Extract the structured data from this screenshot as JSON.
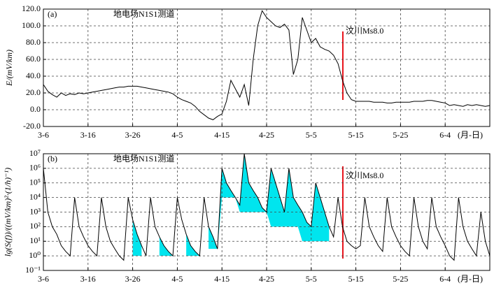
{
  "chart_data": [
    {
      "type": "line",
      "panel": "(a)",
      "annotation": "地电场N1S1测道",
      "event_label": "汶川Ms8.0",
      "y_label": "E/(mV/km)",
      "x_label": "(月-日)",
      "grid": true,
      "categories": [
        "3-6",
        null,
        null,
        null,
        null,
        null,
        null,
        null,
        null,
        null,
        "3-16",
        null,
        null,
        null,
        null,
        null,
        null,
        null,
        null,
        null,
        "3-26",
        null,
        null,
        null,
        null,
        null,
        null,
        null,
        null,
        null,
        "4-5",
        null,
        null,
        null,
        null,
        null,
        null,
        null,
        null,
        null,
        "4-15",
        null,
        null,
        null,
        null,
        null,
        null,
        null,
        null,
        null,
        "4-25",
        null,
        null,
        null,
        null,
        null,
        null,
        null,
        null,
        null,
        "5-5",
        null,
        null,
        null,
        null,
        null,
        null,
        null,
        null,
        null,
        "5-15",
        null,
        null,
        null,
        null,
        null,
        null,
        null,
        null,
        null,
        "5-25",
        null,
        null,
        null,
        null,
        null,
        null,
        null,
        null,
        null,
        "6-4",
        null,
        null,
        null,
        null,
        null,
        null,
        null,
        null,
        null,
        null
      ],
      "series": [
        {
          "color": "#000000",
          "values": [
            30,
            22,
            18,
            15,
            20,
            17,
            19,
            18,
            20,
            19,
            20,
            21,
            22,
            23,
            24,
            25,
            26,
            27,
            27,
            28,
            28,
            28,
            27,
            26,
            25,
            24,
            23,
            22,
            21,
            19,
            15,
            12,
            10,
            8,
            4,
            -2,
            -6,
            -10,
            -12,
            -8,
            -5,
            10,
            35,
            25,
            15,
            30,
            5,
            60,
            100,
            118,
            110,
            105,
            100,
            98,
            102,
            95,
            42,
            60,
            110,
            95,
            80,
            85,
            75,
            72,
            70,
            65,
            55,
            35,
            20,
            12,
            10,
            10,
            10,
            10,
            9,
            9,
            9,
            8,
            8,
            9,
            9,
            9,
            9,
            10,
            10,
            10,
            11,
            11,
            10,
            9,
            8,
            5,
            6,
            5,
            4,
            6,
            5,
            6,
            5,
            4,
            5
          ]
        }
      ],
      "ylim": [
        -20,
        120
      ],
      "yticks": [
        {
          "value": -20,
          "label": "-20.0"
        },
        {
          "value": 0,
          "label": "0.0"
        },
        {
          "value": 20,
          "label": "20.0"
        },
        {
          "value": 40,
          "label": "40.0"
        },
        {
          "value": 60,
          "label": "60.0"
        },
        {
          "value": 80,
          "label": "80.0"
        },
        {
          "value": 100,
          "label": "100.0"
        },
        {
          "value": 120,
          "label": "120.0"
        }
      ]
    },
    {
      "type": "line",
      "panel": "(b)",
      "annotation": "地电场N1S1测道",
      "event_label": "汶川Ms8.0",
      "y_label": "lg(S(f))/((mV/km)²·(1/h)⁻¹)",
      "x_label": "(月-日)",
      "grid": true,
      "log_scale": true,
      "categories": [
        "3-6",
        null,
        null,
        null,
        null,
        null,
        null,
        null,
        null,
        null,
        "3-16",
        null,
        null,
        null,
        null,
        null,
        null,
        null,
        null,
        null,
        "3-26",
        null,
        null,
        null,
        null,
        null,
        null,
        null,
        null,
        null,
        "4-5",
        null,
        null,
        null,
        null,
        null,
        null,
        null,
        null,
        null,
        "4-15",
        null,
        null,
        null,
        null,
        null,
        null,
        null,
        null,
        null,
        "4-25",
        null,
        null,
        null,
        null,
        null,
        null,
        null,
        null,
        null,
        "5-5",
        null,
        null,
        null,
        null,
        null,
        null,
        null,
        null,
        null,
        "5-15",
        null,
        null,
        null,
        null,
        null,
        null,
        null,
        null,
        null,
        "5-25",
        null,
        null,
        null,
        null,
        null,
        null,
        null,
        null,
        null,
        "6-4",
        null,
        null,
        null,
        null,
        null,
        null,
        null,
        null,
        null,
        null
      ],
      "series": [
        {
          "color": "#000000",
          "values": [
            1000000,
            1000,
            100,
            30,
            5,
            2,
            1,
            10000,
            100,
            20,
            5,
            2,
            1,
            10000,
            100,
            10,
            3,
            1,
            0.5,
            10000,
            300,
            30,
            5,
            1,
            10000,
            100,
            20,
            5,
            2,
            1,
            10000,
            300,
            30,
            5,
            2,
            1,
            10000,
            100,
            20,
            3,
            1000000,
            100000,
            30000,
            10000,
            3000,
            10000000,
            100000,
            30000,
            10000,
            2000,
            1000,
            1000000,
            100000,
            10000,
            1000,
            1000000,
            10000,
            3000,
            1000,
            200,
            100,
            100000,
            10000,
            1000,
            100,
            20,
            10000,
            100,
            10,
            5,
            3,
            5,
            10000,
            100,
            20,
            5,
            2,
            10000,
            100,
            20,
            5,
            2,
            1,
            10000,
            100,
            10,
            3,
            10000,
            100,
            20,
            5,
            1,
            0.5,
            10000,
            100,
            10,
            3,
            1,
            1000,
            10,
            1
          ]
        },
        {
          "color": "#00e5ee",
          "values": [
            null,
            null,
            null,
            null,
            null,
            null,
            null,
            null,
            null,
            null,
            null,
            null,
            null,
            null,
            null,
            null,
            null,
            null,
            null,
            null,
            1,
            1,
            1,
            null,
            null,
            null,
            1,
            1,
            1,
            1,
            null,
            null,
            1,
            1,
            1,
            1,
            null,
            3,
            3,
            3,
            10000,
            10000,
            10000,
            10000,
            1000,
            1000,
            1000,
            1000,
            1000,
            1000,
            1000,
            100,
            100,
            100,
            100,
            100,
            100,
            100,
            10,
            10,
            10,
            10,
            10,
            10,
            10,
            null,
            null,
            null,
            null,
            null,
            null,
            null,
            null,
            null,
            null,
            null,
            null,
            null,
            null,
            null,
            null,
            null,
            null,
            null,
            null,
            null,
            null,
            null,
            null,
            null,
            null,
            null,
            null,
            null,
            null,
            null,
            null,
            null,
            null,
            null,
            null
          ]
        }
      ],
      "ylim": [
        0.1,
        10000000
      ],
      "yticks": [
        {
          "value": 0.1,
          "label": "10⁻¹"
        },
        {
          "value": 1,
          "label": "10⁰"
        },
        {
          "value": 10,
          "label": "10¹"
        },
        {
          "value": 100,
          "label": "10²"
        },
        {
          "value": 1000,
          "label": "10³"
        },
        {
          "value": 10000,
          "label": "10⁴"
        },
        {
          "value": 100000,
          "label": "10⁵"
        },
        {
          "value": 1000000,
          "label": "10⁶"
        },
        {
          "value": 10000000,
          "label": "10⁷"
        }
      ]
    }
  ]
}
